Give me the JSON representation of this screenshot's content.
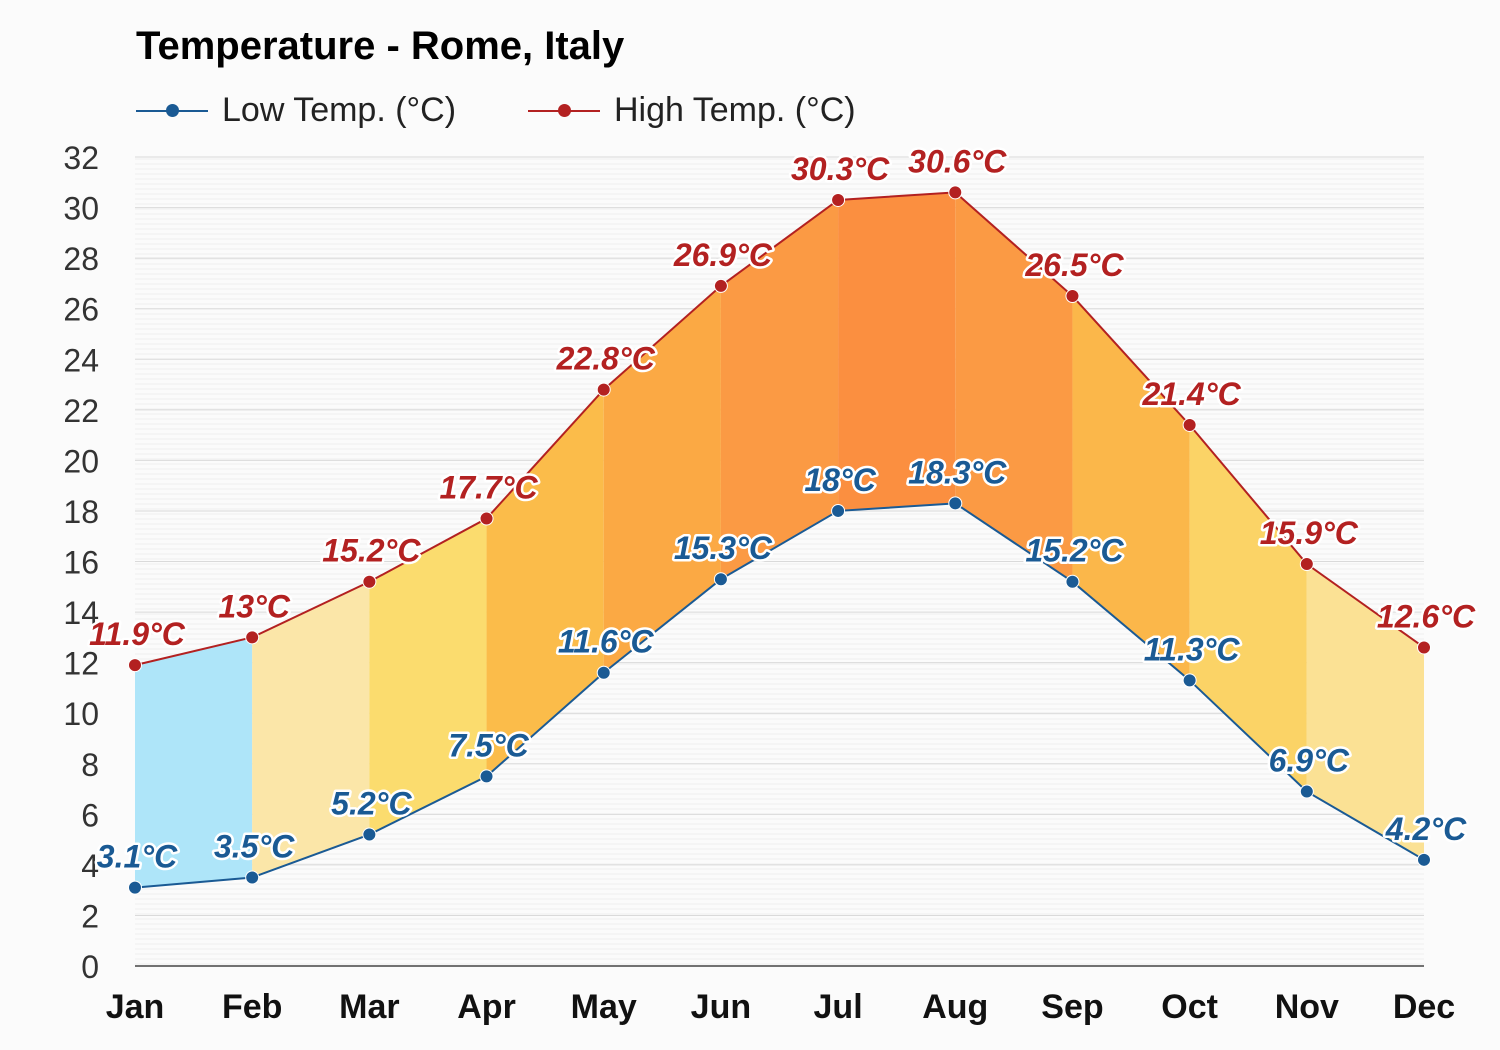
{
  "chart_data": {
    "type": "line",
    "title": "Temperature - Rome, Italy",
    "categories": [
      "Jan",
      "Feb",
      "Mar",
      "Apr",
      "May",
      "Jun",
      "Jul",
      "Aug",
      "Sep",
      "Oct",
      "Nov",
      "Dec"
    ],
    "series": [
      {
        "name": "Low Temp. (°C)",
        "values": [
          3.1,
          3.5,
          5.2,
          7.5,
          11.6,
          15.3,
          18,
          18.3,
          15.2,
          11.3,
          6.9,
          4.2
        ],
        "labels": [
          "3.1°C",
          "3.5°C",
          "5.2°C",
          "7.5°C",
          "11.6°C",
          "15.3°C",
          "18°C",
          "18.3°C",
          "15.2°C",
          "11.3°C",
          "6.9°C",
          "4.2°C"
        ],
        "color": "#1a5a94"
      },
      {
        "name": "High Temp. (°C)",
        "values": [
          11.9,
          13,
          15.2,
          17.7,
          22.8,
          26.9,
          30.3,
          30.6,
          26.5,
          21.4,
          15.9,
          12.6
        ],
        "labels": [
          "11.9°C",
          "13°C",
          "15.2°C",
          "17.7°C",
          "22.8°C",
          "26.9°C",
          "30.3°C",
          "30.6°C",
          "26.5°C",
          "21.4°C",
          "15.9°C",
          "12.6°C"
        ],
        "color": "#b32121"
      }
    ],
    "band_fills": [
      "#aee5f9",
      "#fbe6a8",
      "#fbdc6e",
      "#fbbc4a",
      "#fba944",
      "#fb9a44",
      "#fb8f40",
      "#fb9a44",
      "#fbb74a",
      "#fbd366",
      "#fbe194",
      "#aee5f9"
    ],
    "ylim": [
      0,
      32
    ],
    "yticks": [
      0,
      2,
      4,
      6,
      8,
      10,
      12,
      14,
      16,
      18,
      20,
      22,
      24,
      26,
      28,
      30,
      32
    ],
    "grid": true,
    "legend_position": "top-left"
  }
}
